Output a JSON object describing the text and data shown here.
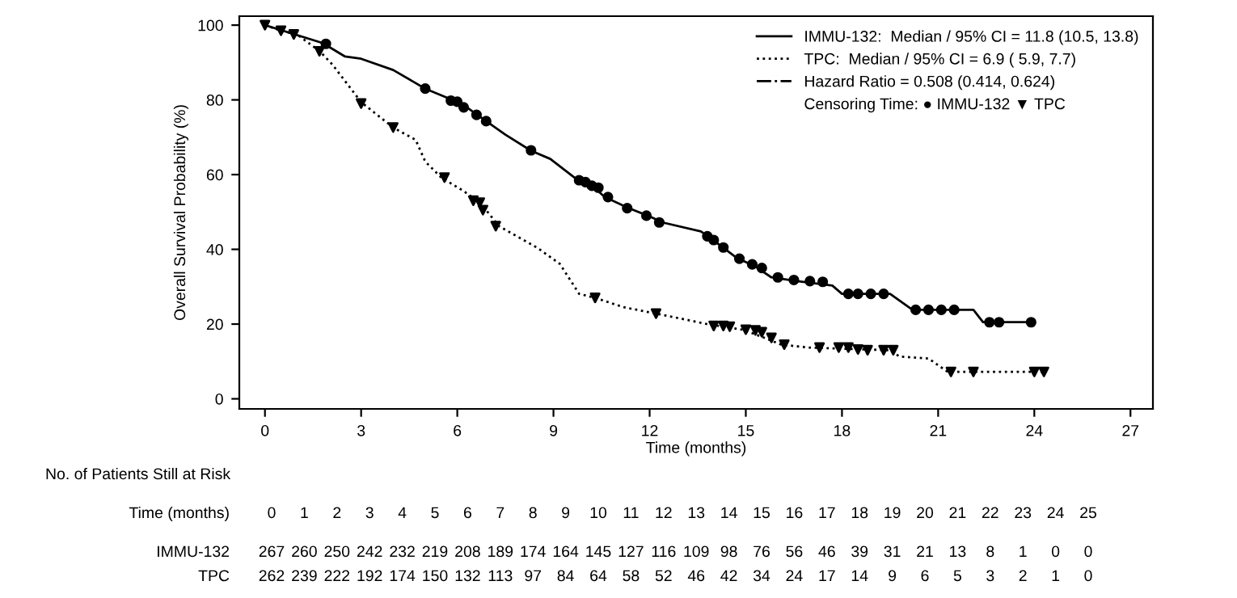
{
  "chart_data": {
    "type": "line",
    "xlabel": "Time (months)",
    "ylabel": "Overall Survival Probability (%)",
    "xlim": [
      -0.8,
      27.7
    ],
    "ylim": [
      -2.7,
      102.4
    ],
    "xticks": [
      0,
      3,
      6,
      9,
      12,
      15,
      18,
      21,
      24,
      27
    ],
    "yticks": [
      0,
      20,
      40,
      60,
      80,
      100
    ],
    "grid": false,
    "legend": "top right",
    "series": [
      {
        "name": "IMMU-132:  Median / 95% CI = 11.8 (10.5, 13.8)",
        "color": "#000000",
        "line_style": "solid",
        "marker": "none",
        "x": [
          0,
          1.8,
          2.5,
          3,
          4,
          5,
          5.9,
          6.3,
          6.9,
          7.5,
          8.3,
          8.9,
          9.7,
          10.3,
          10.6,
          11.3,
          12,
          12.4,
          13.6,
          13.85,
          14.3,
          14.7,
          15.3,
          15.8,
          16.6,
          17.7,
          18.0,
          19.5,
          20.2,
          22.1,
          22.4,
          23.8
        ],
        "values": [
          100,
          95.2,
          91.6,
          91,
          88,
          83,
          79.8,
          78,
          74.3,
          70.7,
          66.4,
          64.2,
          58.9,
          56.3,
          54,
          51.2,
          48.8,
          47.2,
          44.8,
          43.3,
          40.4,
          37.8,
          35.4,
          32.5,
          31.5,
          30.3,
          28.1,
          28.1,
          23.8,
          23.8,
          20.5,
          20.5
        ]
      },
      {
        "name": "TPC:  Median / 95% CI = 6.9 ( 5.9, 7.7)",
        "color": "#000000",
        "line_style": "dotted",
        "marker": "none",
        "x": [
          0,
          0.5,
          1,
          1.7,
          2.1,
          3,
          4,
          4.7,
          5,
          5.5,
          6.2,
          6.6,
          6.9,
          7.3,
          7.9,
          8.5,
          9.2,
          9.8,
          10.3,
          11.2,
          12.2,
          12.9,
          13.85,
          14.9,
          15.5,
          16.1,
          17.0,
          19.5,
          19.8,
          20.7,
          21.3,
          24.3
        ],
        "values": [
          100,
          98.5,
          97.5,
          93.1,
          89.5,
          79.4,
          72.6,
          69.3,
          63.5,
          59.2,
          55.6,
          53.1,
          50.5,
          46.2,
          43.3,
          40.4,
          36.1,
          28.1,
          27,
          24.5,
          22.8,
          21.6,
          19.9,
          18.5,
          16.6,
          14.5,
          13.7,
          13,
          11.3,
          10.8,
          7.2,
          7.2
        ]
      },
      {
        "type": "scatter",
        "color": "#000000",
        "marker": "circle",
        "x": [
          1.9,
          5,
          5.8,
          6,
          6.2,
          6.6,
          6.9,
          8.3,
          9.8,
          10,
          10.2,
          10.4,
          10.7,
          11.3,
          11.9,
          12.3,
          13.8,
          14,
          14.3,
          14.8,
          15.2,
          15.5,
          16,
          16.5,
          17,
          17.4,
          18.2,
          18.5,
          18.9,
          19.3,
          20.3,
          20.7,
          21.1,
          21.5,
          22.6,
          22.9,
          23.9
        ],
        "values": [
          95,
          83,
          79.8,
          79.5,
          78,
          76,
          74.3,
          66.5,
          58.5,
          58,
          57,
          56.5,
          54,
          51,
          49,
          47.2,
          43.5,
          42.5,
          40.5,
          37.5,
          36,
          35,
          32.5,
          31.8,
          31.5,
          31.3,
          28.1,
          28.1,
          28.1,
          28.1,
          23.8,
          23.8,
          23.8,
          23.8,
          20.5,
          20.5,
          20.5
        ]
      },
      {
        "type": "scatter",
        "color": "#000000",
        "marker": "triangle",
        "x": [
          0,
          0.5,
          0.9,
          1.7,
          3,
          4,
          5.6,
          6.5,
          6.7,
          6.8,
          7.2,
          10.3,
          12.2,
          14,
          14.3,
          14.5,
          15,
          15.3,
          15.5,
          15.8,
          16.2,
          17.3,
          17.9,
          18.2,
          18.5,
          18.8,
          19.3,
          19.6,
          21.4,
          22.1,
          24,
          24.3
        ],
        "values": [
          100,
          98.5,
          97.5,
          93,
          79,
          72.6,
          59.2,
          53,
          52.5,
          50.5,
          46.2,
          27,
          22.8,
          19.5,
          19.5,
          19.3,
          18.5,
          18.3,
          17.8,
          16.3,
          14.5,
          13.7,
          13.7,
          13.7,
          13.2,
          13,
          13,
          13,
          7.2,
          7.2,
          7.2,
          7.2
        ]
      }
    ],
    "annotations": [
      "Hazard Ratio = 0.508 (0.414, 0.624)",
      "Censoring Time: ● IMMU-132 ▼ TPC",
      "No. of Patients Still at Risk",
      "Time (months)",
      "0 1 2 3 4 5 6 7 8 9 10 11 12 13 14 15 16 17 18 19 20 21 22 23 24 25",
      "IMMU-132",
      "267 260 250 242 232 219 208 189 174 164 145 127 116 109 98 76 56 46 39 31 21 13 8 1 0 0",
      "TPC",
      "262 239 222 192 174 150 132 113 97 84 64 58 52 46 42 34 24 17 14 9 6 5 3 2 1 0"
    ]
  }
}
